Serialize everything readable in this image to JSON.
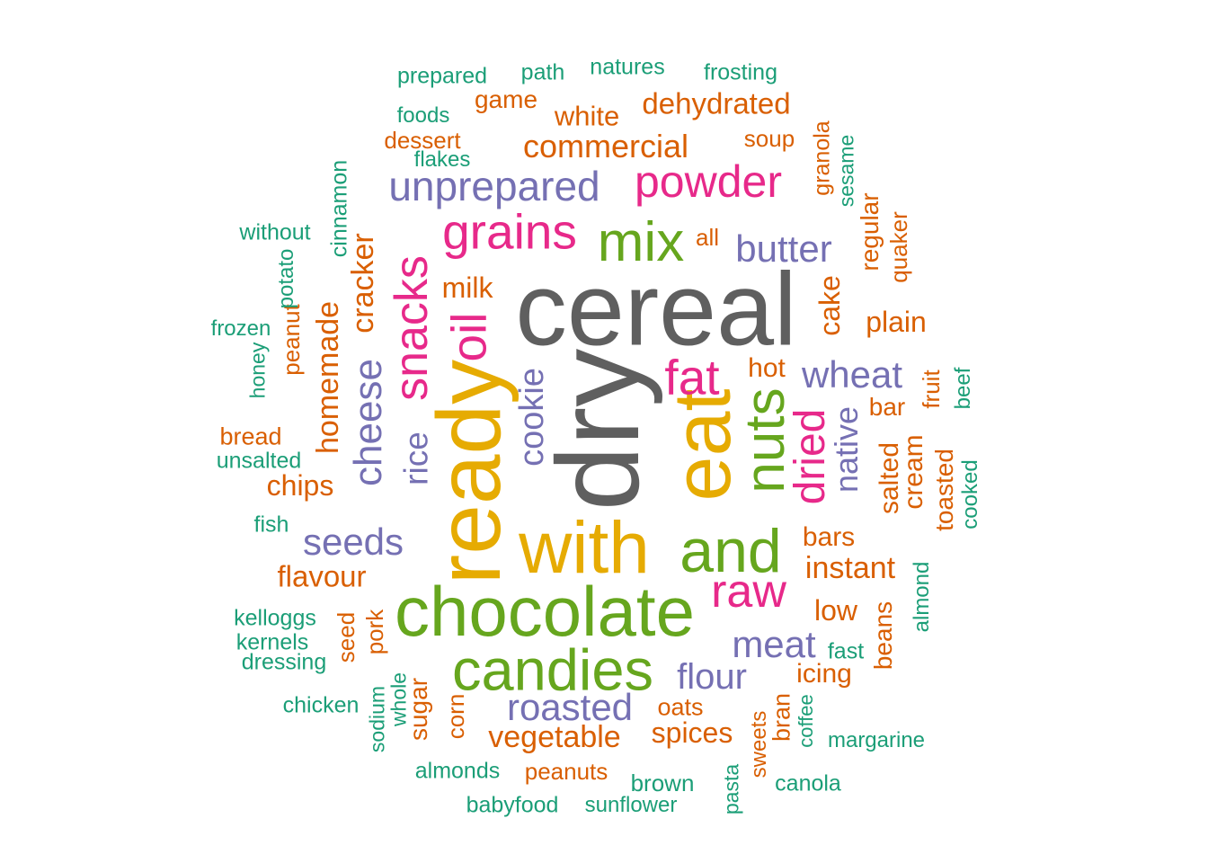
{
  "palette": {
    "gray": "#5f5f5f",
    "yellow": "#e6ab02",
    "green": "#66a61e",
    "magenta": "#e7298a",
    "purple": "#7570b3",
    "orange": "#d95f02",
    "teal": "#1b9e77"
  },
  "words": [
    {
      "text": "cereal",
      "color": "gray"
    },
    {
      "text": "dry",
      "color": "gray"
    },
    {
      "text": "ready",
      "color": "yellow"
    },
    {
      "text": "eat",
      "color": "yellow"
    },
    {
      "text": "with",
      "color": "yellow"
    },
    {
      "text": "and",
      "color": "green"
    },
    {
      "text": "chocolate",
      "color": "green"
    },
    {
      "text": "candies",
      "color": "green"
    },
    {
      "text": "mix",
      "color": "green"
    },
    {
      "text": "nuts",
      "color": "green"
    },
    {
      "text": "oil",
      "color": "magenta"
    },
    {
      "text": "snacks",
      "color": "magenta"
    },
    {
      "text": "grains",
      "color": "magenta"
    },
    {
      "text": "powder",
      "color": "magenta"
    },
    {
      "text": "fat",
      "color": "magenta"
    },
    {
      "text": "raw",
      "color": "magenta"
    },
    {
      "text": "dried",
      "color": "magenta"
    },
    {
      "text": "unprepared",
      "color": "purple"
    },
    {
      "text": "butter",
      "color": "purple"
    },
    {
      "text": "wheat",
      "color": "purple"
    },
    {
      "text": "cookie",
      "color": "purple"
    },
    {
      "text": "cheese",
      "color": "purple"
    },
    {
      "text": "rice",
      "color": "purple"
    },
    {
      "text": "native",
      "color": "purple"
    },
    {
      "text": "seeds",
      "color": "purple"
    },
    {
      "text": "meat",
      "color": "purple"
    },
    {
      "text": "flour",
      "color": "purple"
    },
    {
      "text": "roasted",
      "color": "purple"
    },
    {
      "text": "commercial",
      "color": "orange"
    },
    {
      "text": "dehydrated",
      "color": "orange"
    },
    {
      "text": "white",
      "color": "orange"
    },
    {
      "text": "game",
      "color": "orange"
    },
    {
      "text": "dessert",
      "color": "orange"
    },
    {
      "text": "soup",
      "color": "orange"
    },
    {
      "text": "granola",
      "color": "orange"
    },
    {
      "text": "regular",
      "color": "orange"
    },
    {
      "text": "quaker",
      "color": "orange"
    },
    {
      "text": "all",
      "color": "orange"
    },
    {
      "text": "milk",
      "color": "orange"
    },
    {
      "text": "cracker",
      "color": "orange"
    },
    {
      "text": "homemade",
      "color": "orange"
    },
    {
      "text": "cake",
      "color": "orange"
    },
    {
      "text": "plain",
      "color": "orange"
    },
    {
      "text": "hot",
      "color": "orange"
    },
    {
      "text": "bar",
      "color": "orange"
    },
    {
      "text": "fruit",
      "color": "orange"
    },
    {
      "text": "peanut",
      "color": "orange"
    },
    {
      "text": "bread",
      "color": "orange"
    },
    {
      "text": "chips",
      "color": "orange"
    },
    {
      "text": "salted",
      "color": "orange"
    },
    {
      "text": "cream",
      "color": "orange"
    },
    {
      "text": "toasted",
      "color": "orange"
    },
    {
      "text": "bars",
      "color": "orange"
    },
    {
      "text": "instant",
      "color": "orange"
    },
    {
      "text": "flavour",
      "color": "orange"
    },
    {
      "text": "low",
      "color": "orange"
    },
    {
      "text": "beans",
      "color": "orange"
    },
    {
      "text": "seed",
      "color": "orange"
    },
    {
      "text": "pork",
      "color": "orange"
    },
    {
      "text": "icing",
      "color": "orange"
    },
    {
      "text": "sugar",
      "color": "orange"
    },
    {
      "text": "corn",
      "color": "orange"
    },
    {
      "text": "oats",
      "color": "orange"
    },
    {
      "text": "spices",
      "color": "orange"
    },
    {
      "text": "vegetable",
      "color": "orange"
    },
    {
      "text": "bran",
      "color": "orange"
    },
    {
      "text": "sweets",
      "color": "orange"
    },
    {
      "text": "peanuts",
      "color": "orange"
    },
    {
      "text": "prepared",
      "color": "teal"
    },
    {
      "text": "path",
      "color": "teal"
    },
    {
      "text": "natures",
      "color": "teal"
    },
    {
      "text": "frosting",
      "color": "teal"
    },
    {
      "text": "foods",
      "color": "teal"
    },
    {
      "text": "flakes",
      "color": "teal"
    },
    {
      "text": "sesame",
      "color": "teal"
    },
    {
      "text": "cinnamon",
      "color": "teal"
    },
    {
      "text": "without",
      "color": "teal"
    },
    {
      "text": "potato",
      "color": "teal"
    },
    {
      "text": "frozen",
      "color": "teal"
    },
    {
      "text": "honey",
      "color": "teal"
    },
    {
      "text": "beef",
      "color": "teal"
    },
    {
      "text": "unsalted",
      "color": "teal"
    },
    {
      "text": "cooked",
      "color": "teal"
    },
    {
      "text": "fish",
      "color": "teal"
    },
    {
      "text": "almond",
      "color": "teal"
    },
    {
      "text": "kelloggs",
      "color": "teal"
    },
    {
      "text": "kernels",
      "color": "teal"
    },
    {
      "text": "dressing",
      "color": "teal"
    },
    {
      "text": "fast",
      "color": "teal"
    },
    {
      "text": "chicken",
      "color": "teal"
    },
    {
      "text": "sodium",
      "color": "teal"
    },
    {
      "text": "whole",
      "color": "teal"
    },
    {
      "text": "coffee",
      "color": "teal"
    },
    {
      "text": "margarine",
      "color": "teal"
    },
    {
      "text": "almonds",
      "color": "teal"
    },
    {
      "text": "brown",
      "color": "teal"
    },
    {
      "text": "canola",
      "color": "teal"
    },
    {
      "text": "pasta",
      "color": "teal"
    },
    {
      "text": "babyfood",
      "color": "teal"
    },
    {
      "text": "sunflower",
      "color": "teal"
    }
  ]
}
